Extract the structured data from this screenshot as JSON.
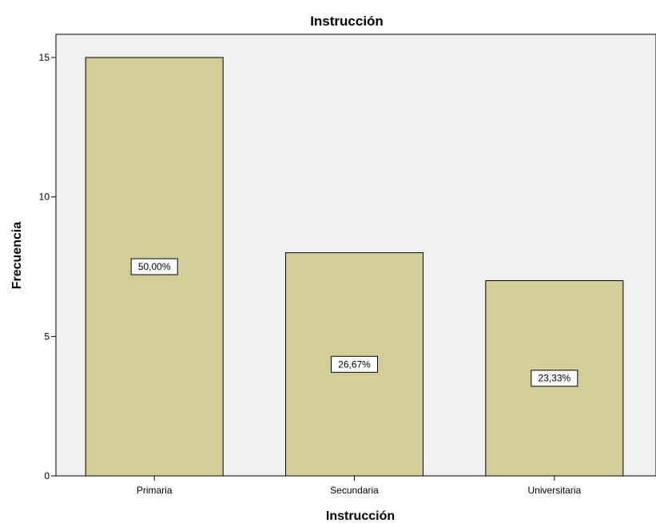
{
  "chart_data": {
    "type": "bar",
    "title": "Instrucción",
    "xlabel": "Instrucción",
    "ylabel": "Frecuencia",
    "categories": [
      "Primaria",
      "Secundaria",
      "Universitaria"
    ],
    "values": [
      15,
      8,
      7
    ],
    "data_labels": [
      "50,00%",
      "26,67%",
      "23,33%"
    ],
    "ylim": [
      0,
      15
    ],
    "yticks": [
      0,
      5,
      10,
      15
    ],
    "grid": false,
    "bar_color": "#d3ce98",
    "plot_background": "#f0f0f0"
  }
}
